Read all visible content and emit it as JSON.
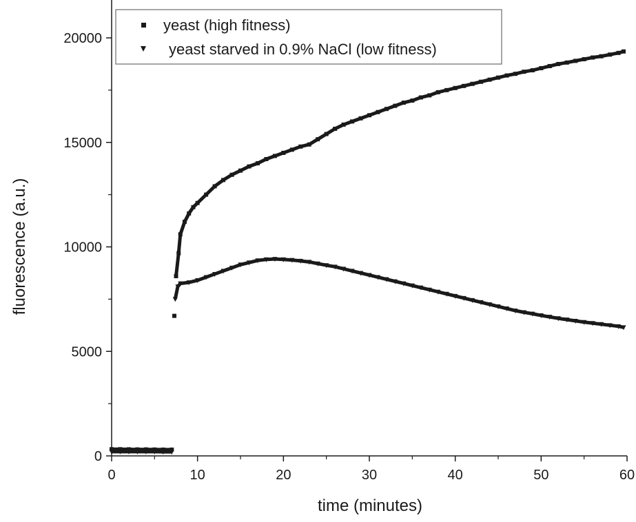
{
  "chart_data": {
    "type": "scatter",
    "title": "",
    "xlabel": "time (minutes)",
    "ylabel": "fluorescence (a.u.)",
    "xlim": [
      0,
      60
    ],
    "ylim": [
      0,
      20000
    ],
    "x_ticks": [
      0,
      10,
      20,
      30,
      40,
      50,
      60
    ],
    "y_ticks": [
      0,
      5000,
      10000,
      15000,
      20000
    ],
    "grid": false,
    "legend_position": "top-left",
    "series": [
      {
        "name": "yeast (high fitness)",
        "marker": "square",
        "color": "#1a1a1a",
        "x": [
          0,
          1,
          2,
          3,
          4,
          5,
          6,
          7,
          7.3,
          7.5,
          7.8,
          8,
          8.5,
          9,
          9.5,
          10,
          11,
          12,
          13,
          14,
          15,
          16,
          17,
          18,
          19,
          20,
          21,
          22,
          23,
          24,
          25,
          26,
          27,
          28,
          29,
          30,
          31,
          32,
          33,
          34,
          35,
          36,
          37,
          38,
          39,
          40,
          41,
          42,
          43,
          44,
          45,
          46,
          47,
          48,
          49,
          50,
          51,
          52,
          53,
          54,
          55,
          56,
          57,
          58,
          59,
          59.6
        ],
        "y": [
          320,
          320,
          315,
          310,
          310,
          305,
          300,
          300,
          6700,
          8600,
          9700,
          10600,
          11200,
          11600,
          11900,
          12100,
          12500,
          12900,
          13200,
          13450,
          13650,
          13850,
          14000,
          14200,
          14350,
          14500,
          14650,
          14800,
          14900,
          15150,
          15400,
          15650,
          15850,
          16000,
          16150,
          16300,
          16450,
          16600,
          16750,
          16900,
          17000,
          17150,
          17250,
          17400,
          17500,
          17600,
          17700,
          17800,
          17900,
          18000,
          18100,
          18200,
          18280,
          18380,
          18450,
          18550,
          18650,
          18750,
          18820,
          18900,
          18980,
          19060,
          19120,
          19200,
          19280,
          19350
        ]
      },
      {
        "name": "yeast starved in 0.9% NaCl (low fitness)",
        "marker": "triangle-down",
        "color": "#1a1a1a",
        "x": [
          0,
          1,
          2,
          3,
          4,
          5,
          6,
          7,
          7.4,
          7.7,
          8,
          9,
          10,
          11,
          12,
          13,
          14,
          15,
          16,
          17,
          18,
          19,
          20,
          21,
          22,
          23,
          24,
          25,
          26,
          27,
          28,
          29,
          30,
          31,
          32,
          33,
          34,
          35,
          36,
          37,
          38,
          39,
          40,
          41,
          42,
          43,
          44,
          45,
          46,
          47,
          48,
          49,
          50,
          51,
          52,
          53,
          54,
          55,
          56,
          57,
          58,
          59,
          59.6
        ],
        "y": [
          200,
          200,
          200,
          200,
          200,
          200,
          195,
          195,
          7500,
          8100,
          8250,
          8300,
          8400,
          8550,
          8700,
          8850,
          9000,
          9150,
          9250,
          9350,
          9400,
          9420,
          9400,
          9370,
          9330,
          9280,
          9200,
          9120,
          9050,
          8950,
          8850,
          8750,
          8650,
          8550,
          8450,
          8350,
          8250,
          8150,
          8050,
          7950,
          7850,
          7750,
          7650,
          7550,
          7450,
          7350,
          7250,
          7150,
          7050,
          6950,
          6870,
          6800,
          6720,
          6650,
          6580,
          6520,
          6460,
          6400,
          6350,
          6300,
          6250,
          6200,
          6150
        ]
      }
    ]
  }
}
